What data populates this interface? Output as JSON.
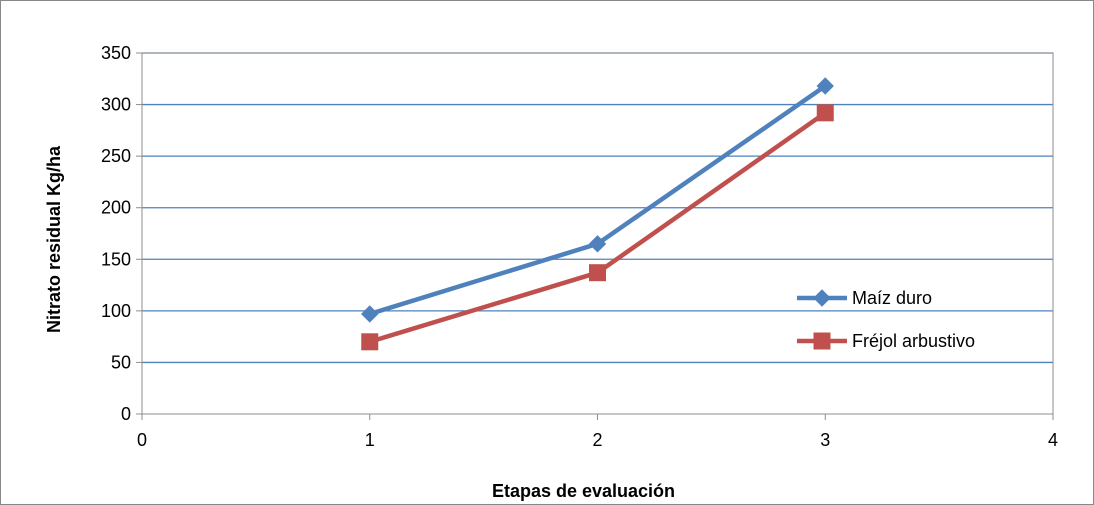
{
  "chart_data": {
    "type": "line",
    "title": "",
    "xlabel": "Etapas de evaluación",
    "ylabel": "Nitrato residual Kg/ha",
    "xlim": [
      0,
      4
    ],
    "ylim": [
      0,
      350
    ],
    "xticks": [
      0,
      1,
      2,
      3,
      4
    ],
    "yticks": [
      0,
      50,
      100,
      150,
      200,
      250,
      300,
      350
    ],
    "grid": "horizontal",
    "legend_position": "right",
    "series": [
      {
        "name": "Maíz duro",
        "color": "#4F81BD",
        "marker": "diamond",
        "x": [
          1,
          2,
          3
        ],
        "y": [
          97,
          165,
          318
        ]
      },
      {
        "name": "Fréjol arbustivo",
        "color": "#C0504D",
        "marker": "square",
        "x": [
          1,
          2,
          3
        ],
        "y": [
          70,
          137,
          292
        ]
      }
    ]
  }
}
